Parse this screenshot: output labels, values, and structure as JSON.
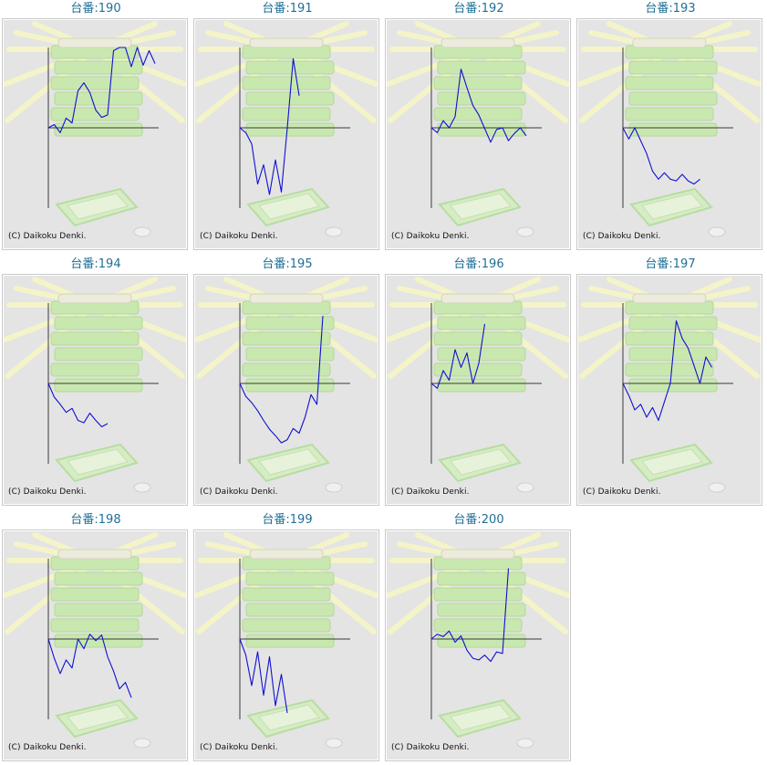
{
  "page": {
    "title_prefix": "台番:",
    "copyright": "(C) Daikoku Denki."
  },
  "colors": {
    "title": "#1f6f96",
    "line": "#1010d0",
    "axis": "#3a3a3a",
    "panel_bg": "#e4e4e4",
    "decor_green": "#c8e8b0",
    "decor_rays": "#f4f4c8"
  },
  "chart_data": [
    {
      "type": "line",
      "title": "台番:190",
      "machine": "190",
      "ylim": [
        -10,
        10
      ],
      "values": [
        0,
        0.4,
        -0.6,
        1.2,
        0.6,
        4.6,
        5.6,
        4.4,
        2.2,
        1.3,
        1.6,
        9.6,
        11.8,
        11,
        7.6,
        10.3,
        7.8,
        9.6,
        8
      ]
    },
    {
      "type": "line",
      "title": "台番:191",
      "machine": "191",
      "ylim": [
        -10,
        10
      ],
      "values": [
        0,
        -0.6,
        -2,
        -7,
        -4.6,
        -8.3,
        -4,
        -8,
        0,
        8.6,
        4
      ]
    },
    {
      "type": "line",
      "title": "台番:192",
      "machine": "192",
      "ylim": [
        -10,
        10
      ],
      "values": [
        0,
        -0.6,
        0.9,
        0,
        1.4,
        7.3,
        5,
        2.8,
        1.6,
        -0.1,
        -1.8,
        -0.2,
        0,
        -1.6,
        -0.7,
        0,
        -1
      ]
    },
    {
      "type": "line",
      "title": "台番:193",
      "machine": "193",
      "ylim": [
        -10,
        10
      ],
      "values": [
        0,
        -1.4,
        0,
        -1.6,
        -3.2,
        -5.4,
        -6.4,
        -5.6,
        -6.4,
        -6.6,
        -5.8,
        -6.6,
        -7,
        -6.4
      ]
    },
    {
      "type": "line",
      "title": "台番:194",
      "machine": "194",
      "ylim": [
        -10,
        10
      ],
      "values": [
        0,
        -1.7,
        -2.6,
        -3.6,
        -3.1,
        -4.6,
        -4.9,
        -3.7,
        -4.6,
        -5.4,
        -5
      ]
    },
    {
      "type": "line",
      "title": "台番:195",
      "machine": "195",
      "ylim": [
        -10,
        10
      ],
      "values": [
        0,
        -1.6,
        -2.4,
        -3.4,
        -4.6,
        -5.7,
        -6.5,
        -7.4,
        -7,
        -5.6,
        -6.2,
        -4.2,
        -1.4,
        -2.6,
        8.4
      ]
    },
    {
      "type": "line",
      "title": "台番:196",
      "machine": "196",
      "ylim": [
        -10,
        10
      ],
      "values": [
        0,
        -0.6,
        1.6,
        0.4,
        4.2,
        2,
        3.8,
        0,
        2.5,
        7.4
      ]
    },
    {
      "type": "line",
      "title": "台番:197",
      "machine": "197",
      "ylim": [
        -10,
        10
      ],
      "values": [
        0,
        -1.5,
        -3.3,
        -2.6,
        -4.2,
        -3,
        -4.6,
        -2.3,
        0,
        7.8,
        5.6,
        4.4,
        2.2,
        0,
        3.3,
        2
      ]
    },
    {
      "type": "line",
      "title": "台番:198",
      "machine": "198",
      "ylim": [
        -10,
        10
      ],
      "values": [
        0,
        -2.4,
        -4.3,
        -2.6,
        -3.6,
        0,
        -1.2,
        0.6,
        -0.2,
        0.5,
        -2.2,
        -4,
        -6.2,
        -5.4,
        -7.3
      ]
    },
    {
      "type": "line",
      "title": "台番:199",
      "machine": "199",
      "ylim": [
        -10,
        10
      ],
      "values": [
        0,
        -2,
        -5.8,
        -1.6,
        -7,
        -2.2,
        -8.3,
        -4.4,
        -9.2
      ]
    },
    {
      "type": "line",
      "title": "台番:200",
      "machine": "200",
      "ylim": [
        -10,
        10
      ],
      "values": [
        0,
        0.6,
        0.3,
        1,
        -0.4,
        0.4,
        -1.4,
        -2.4,
        -2.6,
        -2,
        -2.8,
        -1.6,
        -1.8,
        8.8
      ]
    }
  ]
}
